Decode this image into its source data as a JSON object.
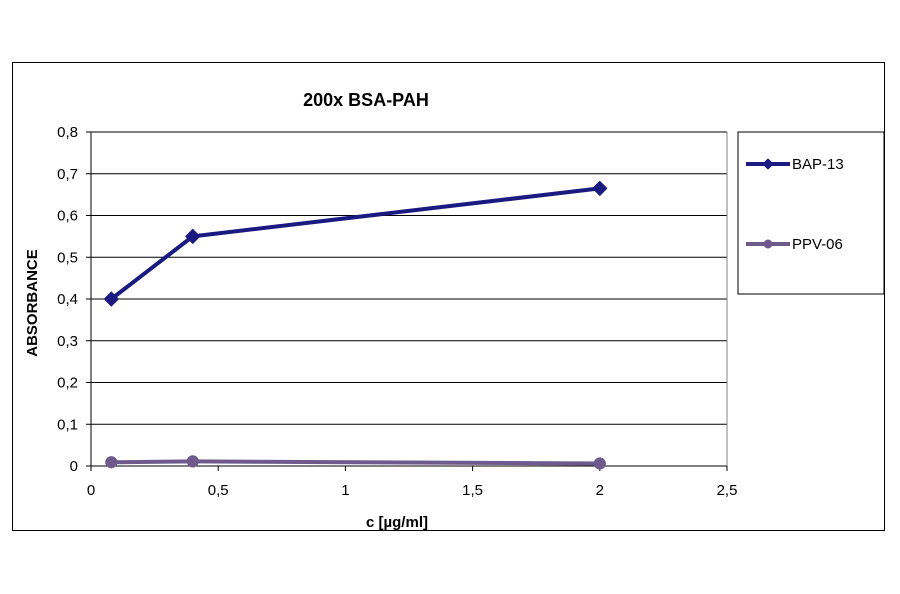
{
  "chart_data": {
    "type": "line",
    "title": "200x BSA-PAH",
    "xlabel": "c [µg/ml]",
    "ylabel": "ABSORBANCE",
    "xlim": [
      0,
      2.5
    ],
    "ylim": [
      0,
      0.8
    ],
    "x_ticks": [
      0,
      0.5,
      1,
      1.5,
      2,
      2.5
    ],
    "x_tick_labels": [
      "0",
      "0,5",
      "1",
      "1,5",
      "2",
      "2,5"
    ],
    "y_ticks": [
      0,
      0.1,
      0.2,
      0.3,
      0.4,
      0.5,
      0.6,
      0.7,
      0.8
    ],
    "y_tick_labels": [
      "0",
      "0,1",
      "0,2",
      "0,3",
      "0,4",
      "0,5",
      "0,6",
      "0,7",
      "0,8"
    ],
    "grid": "horizontal",
    "legend_position": "right",
    "series": [
      {
        "name": "BAP-13",
        "color": "#1a1a80",
        "marker": "diamond",
        "x": [
          0.08,
          0.4,
          2.0
        ],
        "y": [
          0.4,
          0.55,
          0.665
        ]
      },
      {
        "name": "PPV-06",
        "color": "#6e5a8c",
        "marker": "circle",
        "x": [
          0.08,
          0.4,
          2.0
        ],
        "y": [
          0.009,
          0.011,
          0.006
        ]
      }
    ]
  }
}
